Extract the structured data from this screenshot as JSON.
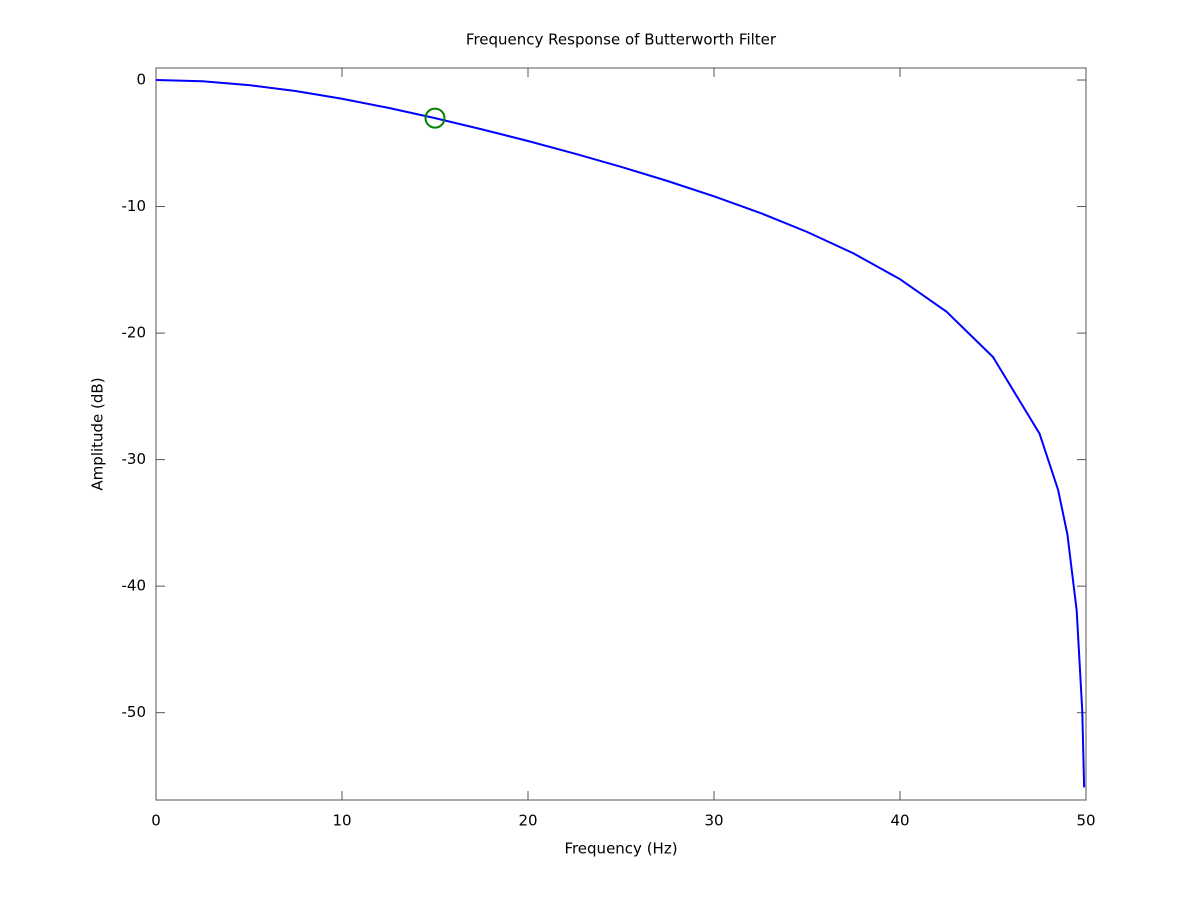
{
  "chart_data": {
    "type": "line",
    "title": "Frequency Response of Butterworth Filter",
    "x_label": "Frequency (Hz)",
    "y_label": "Amplitude (dB)",
    "x": [
      0,
      2.5,
      5,
      7.5,
      10,
      12.5,
      15,
      17.5,
      20,
      22.5,
      25,
      27.5,
      30,
      32.5,
      35,
      37.5,
      40,
      42.5,
      45,
      47.5,
      48.5,
      49,
      49.5,
      49.8,
      49.9
    ],
    "series": [
      {
        "color": "#0000ff",
        "values": [
          0,
          -0.1,
          -0.4,
          -0.87,
          -1.48,
          -2.2,
          -3.01,
          -3.89,
          -4.82,
          -5.81,
          -6.86,
          -7.98,
          -9.19,
          -10.51,
          -12.0,
          -13.7,
          -15.74,
          -18.31,
          -21.89,
          -27.94,
          -32.39,
          -35.91,
          -41.93,
          -49.89,
          -55.9
        ]
      }
    ],
    "markers": [
      {
        "color": "#008000",
        "x": 15,
        "y": -3.01
      }
    ],
    "xlim": [
      0,
      50
    ],
    "xticks": [
      0,
      10,
      20,
      30,
      40,
      50
    ],
    "ylim": [
      -56.9,
      0.95
    ],
    "yticks": [
      0,
      -10,
      -20,
      -30,
      -40,
      -50
    ],
    "grid": false
  }
}
